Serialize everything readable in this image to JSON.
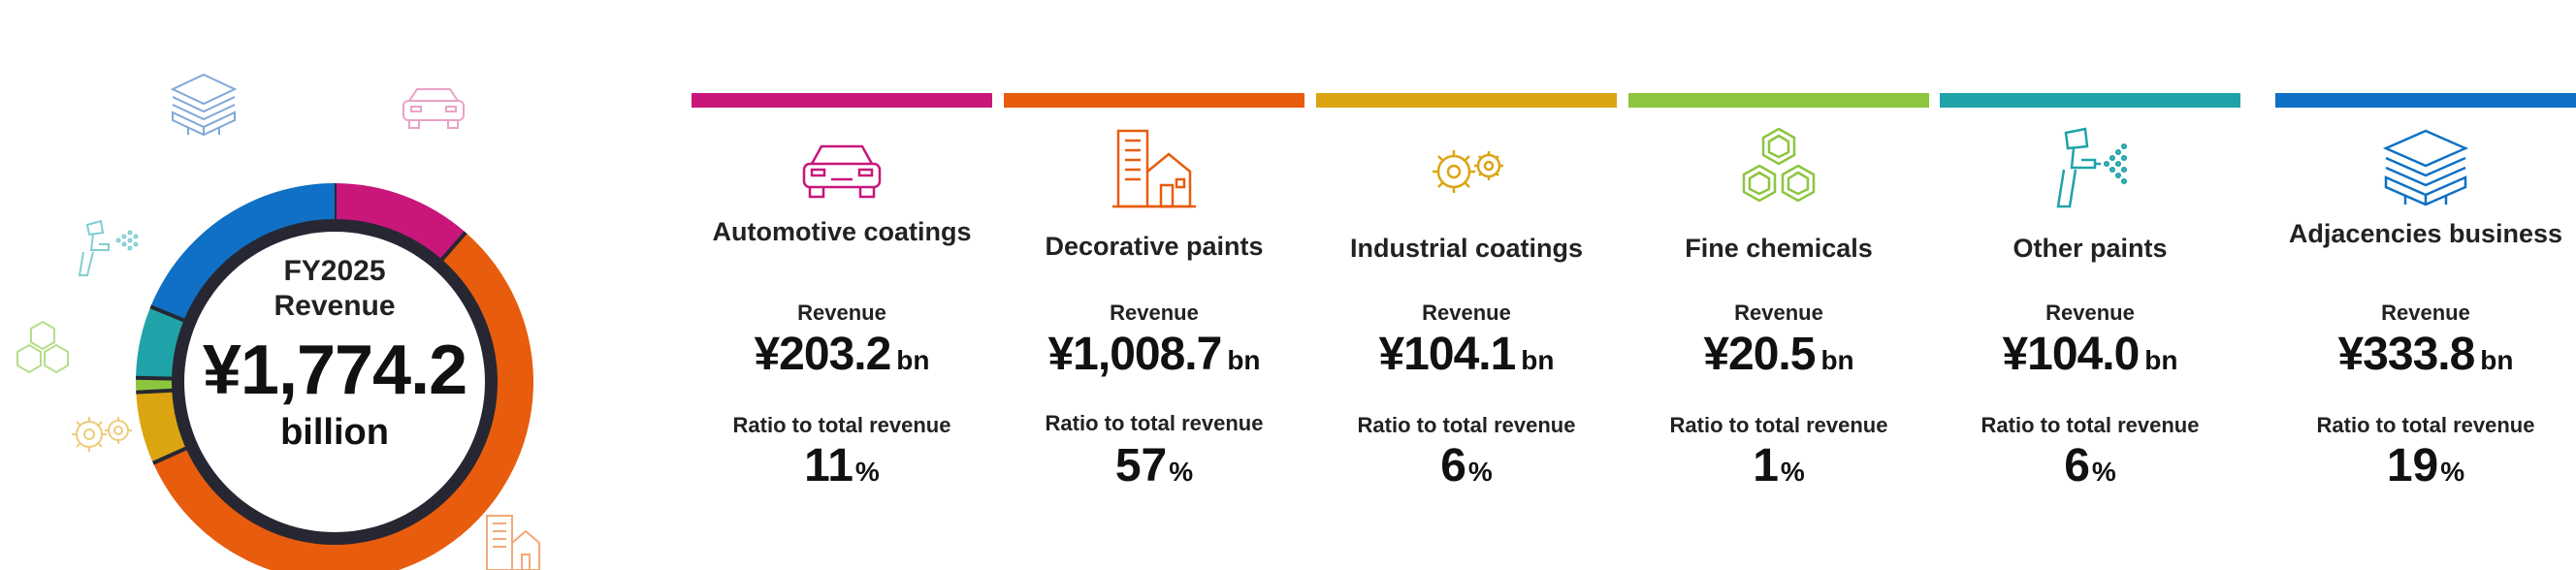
{
  "summary": {
    "fy_label": "FY2025",
    "revenue_label": "Revenue",
    "total_value": "¥1,774.2",
    "total_unit": "billion"
  },
  "chart_data": {
    "type": "pie",
    "categories": [
      "Automotive coatings",
      "Decorative paints",
      "Industrial coatings",
      "Fine chemicals",
      "Other paints",
      "Adjacencies business"
    ],
    "values": [
      203.2,
      1008.7,
      104.1,
      20.5,
      104.0,
      333.8
    ],
    "colors": [
      "#c8167a",
      "#e85c0d",
      "#dba512",
      "#8cc63e",
      "#1fa3a8",
      "#0f70c5"
    ],
    "title": "",
    "donut": true
  },
  "segments": [
    {
      "name": "Automotive coatings",
      "revenue_label": "Revenue",
      "revenue": "¥203.2",
      "revenue_unit": "bn",
      "ratio_label": "Ratio to total revenue",
      "ratio": "11",
      "ratio_unit": "%",
      "color": "#c8167a",
      "icon": "car-icon"
    },
    {
      "name": "Decorative paints",
      "revenue_label": "Revenue",
      "revenue": "¥1,008.7",
      "revenue_unit": "bn",
      "ratio_label": "Ratio to total revenue",
      "ratio": "57",
      "ratio_unit": "%",
      "color": "#e85c0d",
      "icon": "buildings-icon"
    },
    {
      "name": "Industrial coatings",
      "revenue_label": "Revenue",
      "revenue": "¥104.1",
      "revenue_unit": "bn",
      "ratio_label": "Ratio to total revenue",
      "ratio": "6",
      "ratio_unit": "%",
      "color": "#dba512",
      "icon": "gears-icon"
    },
    {
      "name": "Fine chemicals",
      "revenue_label": "Revenue",
      "revenue": "¥20.5",
      "revenue_unit": "bn",
      "ratio_label": "Ratio to total revenue",
      "ratio": "1",
      "ratio_unit": "%",
      "color": "#8cc63e",
      "icon": "hexagons-icon"
    },
    {
      "name": "Other paints",
      "revenue_label": "Revenue",
      "revenue": "¥104.0",
      "revenue_unit": "bn",
      "ratio_label": "Ratio to total revenue",
      "ratio": "6",
      "ratio_unit": "%",
      "color": "#1fa3a8",
      "icon": "spray-gun-icon"
    },
    {
      "name": "Adjacencies business",
      "revenue_label": "Revenue",
      "revenue": "¥333.8",
      "revenue_unit": "bn",
      "ratio_label": "Ratio to total revenue",
      "ratio": "19",
      "ratio_unit": "%",
      "color": "#0f70c5",
      "icon": "layers-icon"
    }
  ]
}
